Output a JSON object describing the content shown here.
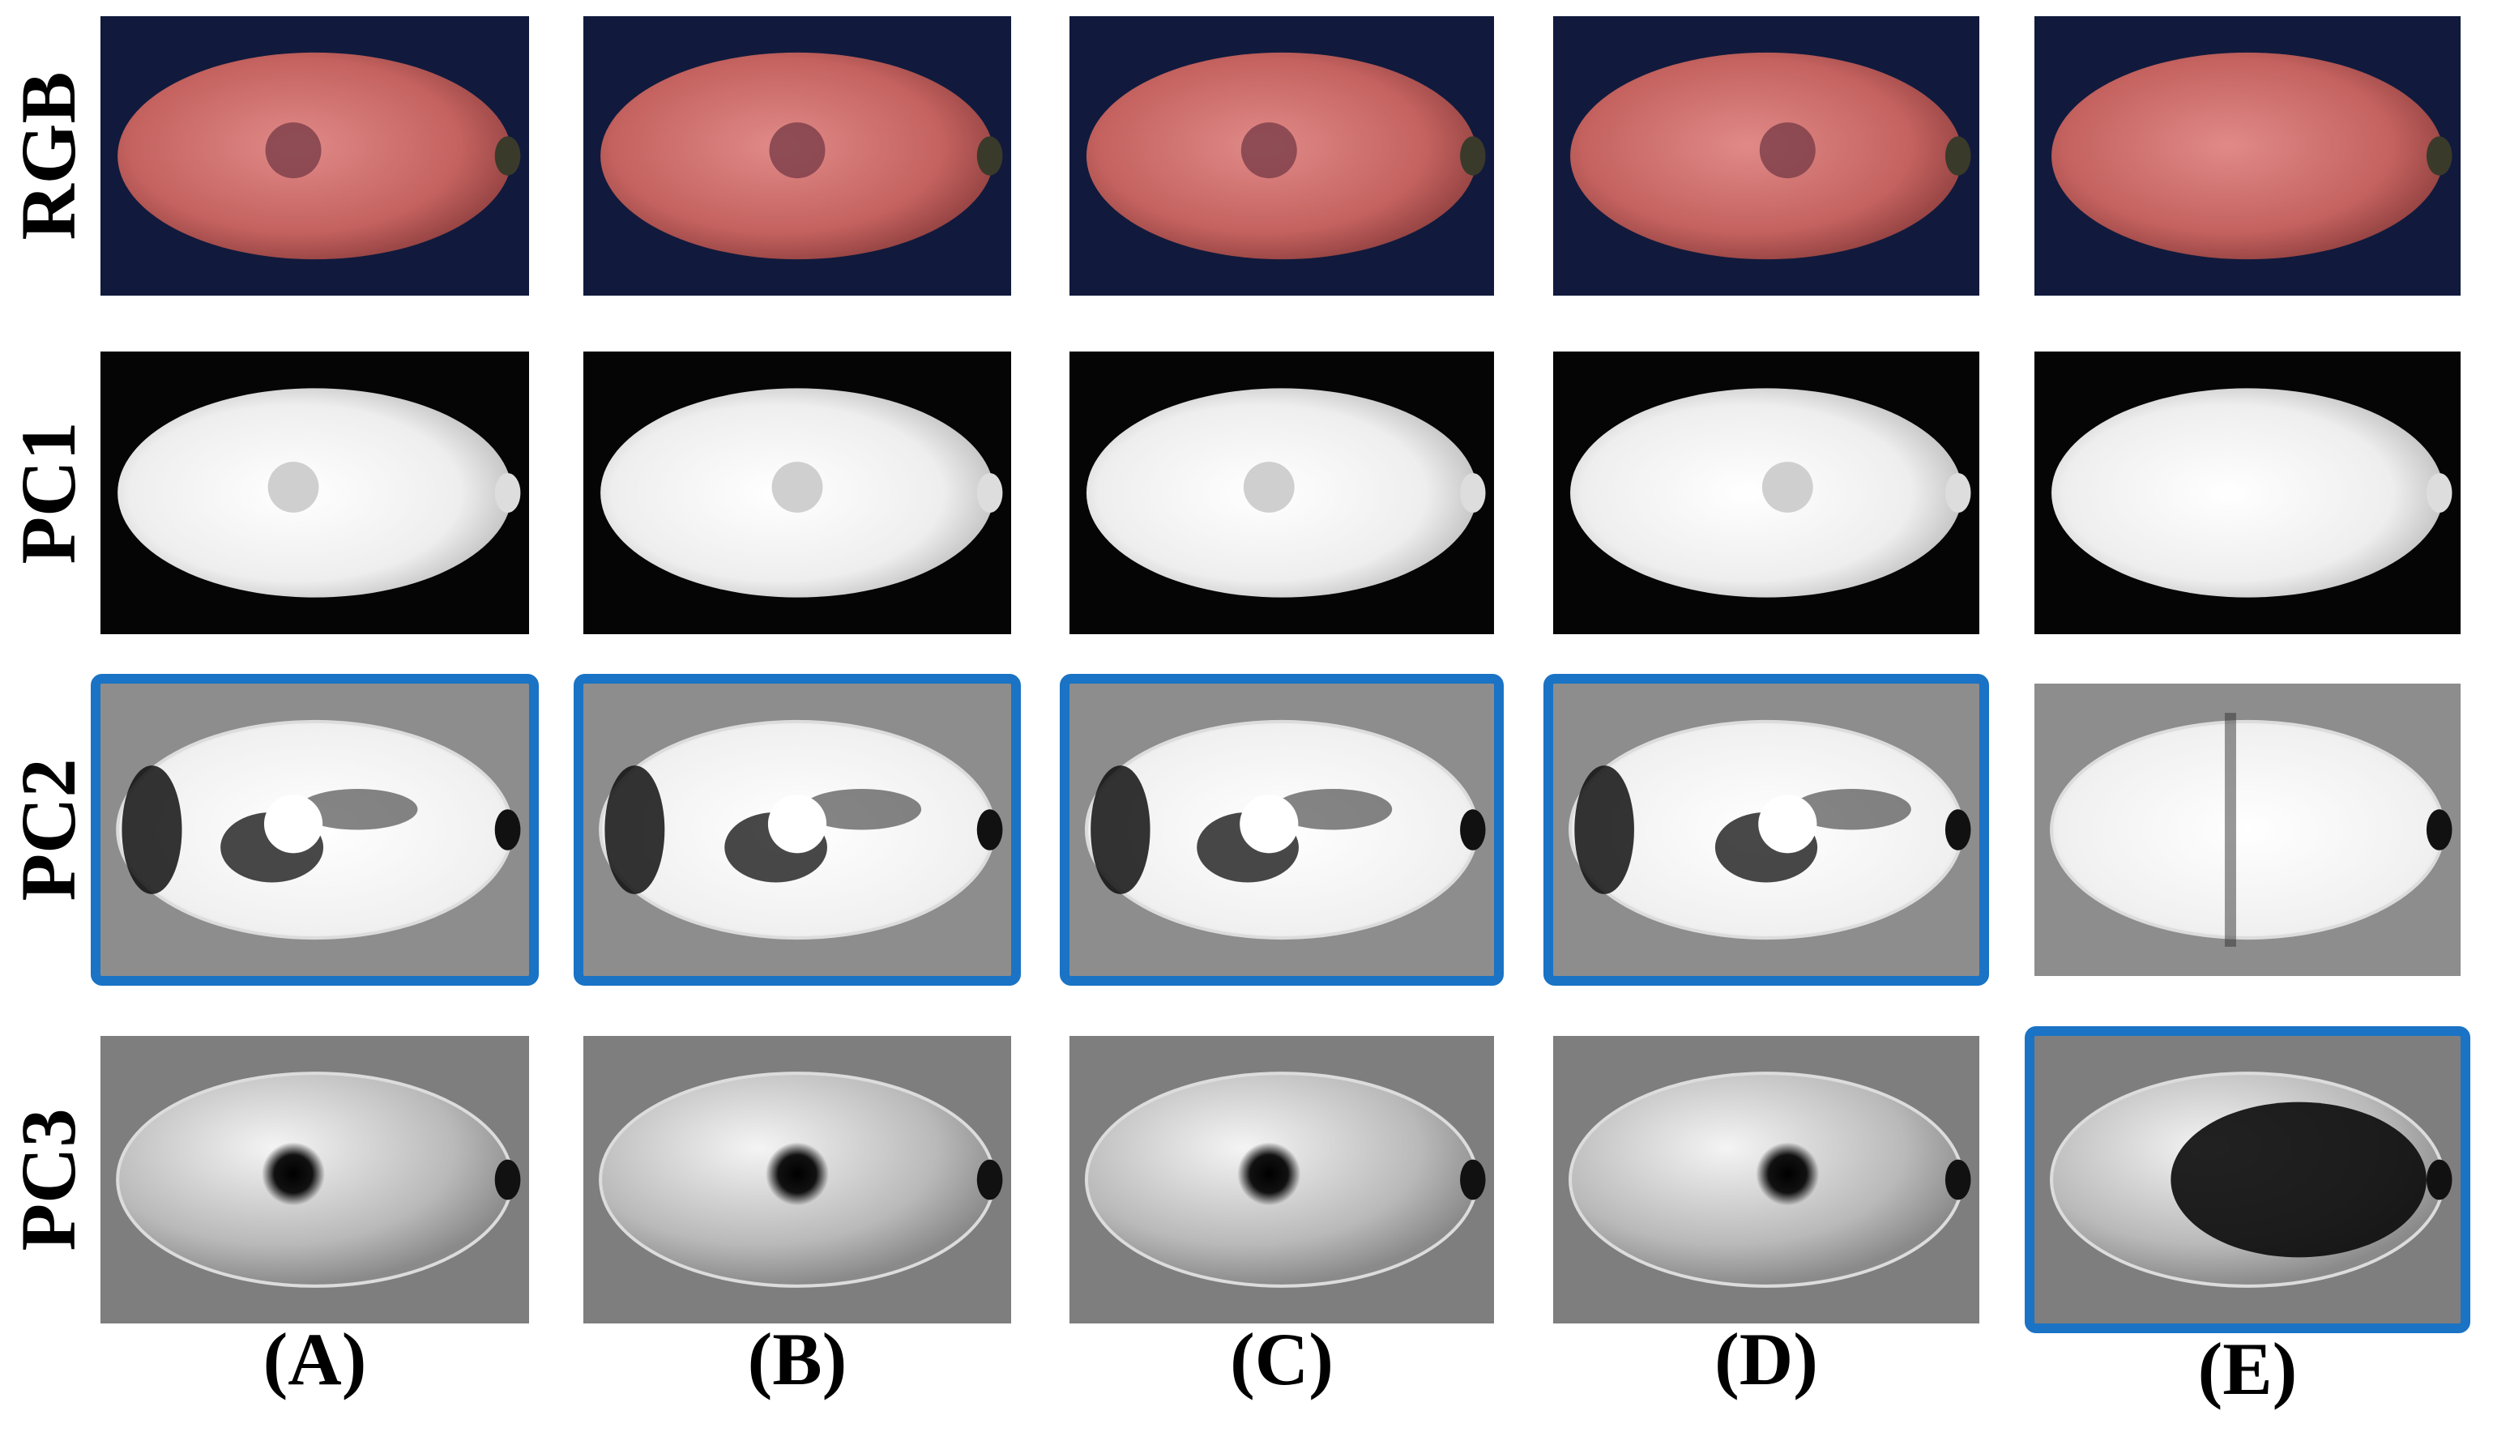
{
  "row_labels": [
    "RGB",
    "PC1",
    "PC2",
    "PC3"
  ],
  "column_labels": [
    "(A)",
    "(B)",
    "(C)",
    "(D)",
    "(E)"
  ]
}
